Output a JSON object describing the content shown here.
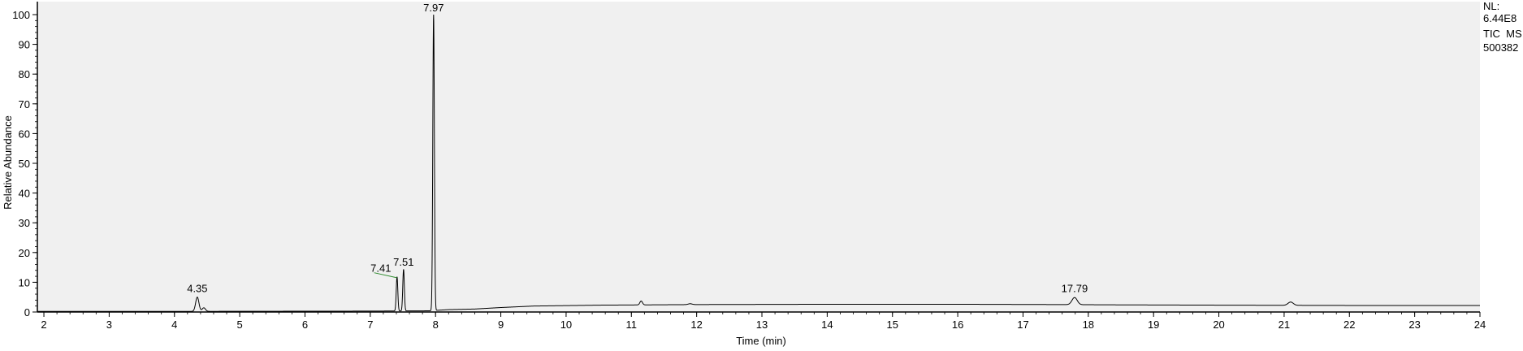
{
  "chart_data": {
    "type": "line",
    "title": "",
    "xlabel": "Time (min)",
    "ylabel": "Relative Abundance",
    "xlim": [
      1.9,
      24
    ],
    "ylim": [
      0,
      100
    ],
    "x_ticks": [
      2,
      3,
      4,
      5,
      6,
      7,
      8,
      9,
      10,
      11,
      12,
      13,
      14,
      15,
      16,
      17,
      18,
      19,
      20,
      21,
      22,
      23,
      24
    ],
    "y_ticks": [
      0,
      10,
      20,
      30,
      40,
      50,
      60,
      70,
      80,
      90,
      100
    ],
    "grid": false,
    "background": "#f0f0f0",
    "line_color": "#000000",
    "annotation_line_color": "#2e8b2e",
    "info": [
      "NL:",
      "6.44E8",
      "TIC  MS",
      "500382"
    ],
    "peak_labels": [
      {
        "x": 4.35,
        "label": "4.35",
        "y": 5
      },
      {
        "x": 7.41,
        "label": "7.41",
        "y": 12
      },
      {
        "x": 7.51,
        "label": "7.51",
        "y": 14
      },
      {
        "x": 7.97,
        "label": "7.97",
        "y": 100
      },
      {
        "x": 17.79,
        "label": "17.79",
        "y": 5
      }
    ],
    "baseline": [
      [
        1.9,
        0.2
      ],
      [
        4.0,
        0.2
      ],
      [
        7.0,
        0.3
      ],
      [
        7.9,
        0.4
      ],
      [
        8.2,
        0.8
      ],
      [
        8.6,
        1.0
      ],
      [
        9.0,
        1.5
      ],
      [
        9.5,
        2.0
      ],
      [
        10.5,
        2.3
      ],
      [
        12.0,
        2.5
      ],
      [
        14.0,
        2.6
      ],
      [
        16.0,
        2.6
      ],
      [
        17.5,
        2.5
      ],
      [
        18.5,
        2.4
      ],
      [
        20.0,
        2.3
      ],
      [
        22.0,
        2.2
      ],
      [
        24.0,
        2.2
      ]
    ],
    "peaks": [
      {
        "center": 4.35,
        "height": 4.8,
        "width": 0.025
      },
      {
        "center": 4.45,
        "height": 1.2,
        "width": 0.025
      },
      {
        "center": 7.41,
        "height": 11.5,
        "width": 0.012
      },
      {
        "center": 7.51,
        "height": 14.0,
        "width": 0.012
      },
      {
        "center": 7.97,
        "height": 99.6,
        "width": 0.012
      },
      {
        "center": 11.15,
        "height": 1.3,
        "width": 0.02
      },
      {
        "center": 11.9,
        "height": 0.3,
        "width": 0.03
      },
      {
        "center": 17.79,
        "height": 2.4,
        "width": 0.04
      },
      {
        "center": 21.1,
        "height": 1.1,
        "width": 0.04
      }
    ]
  }
}
